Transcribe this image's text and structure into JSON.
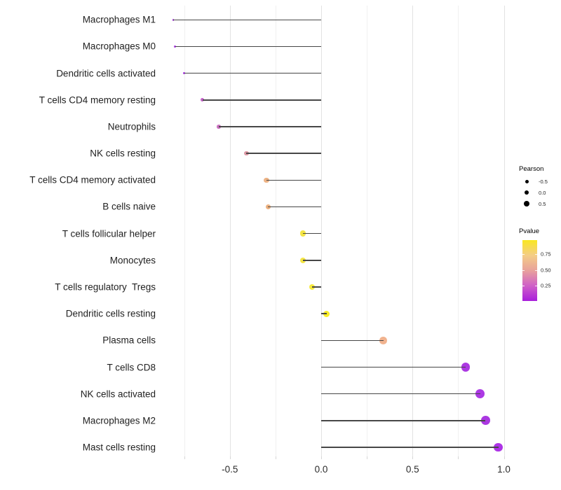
{
  "chart_data": {
    "type": "lollipop",
    "title": "",
    "xlabel": "",
    "ylabel": "",
    "xlim": [
      -0.88,
      1.02
    ],
    "x_ticks": [
      {
        "value": -0.5,
        "label": "-0.5"
      },
      {
        "value": 0.0,
        "label": "0.0"
      },
      {
        "value": 0.5,
        "label": "0.5"
      },
      {
        "value": 1.0,
        "label": "1.0"
      }
    ],
    "minor_gridlines": [
      -0.75,
      -0.25,
      0.25,
      0.75
    ],
    "grid": "vertical-only",
    "baseline": 0.0,
    "points": [
      {
        "label": "Macrophages M1",
        "pearson": -0.81,
        "color": "#a42ae0"
      },
      {
        "label": "Macrophages M0",
        "pearson": -0.8,
        "color": "#a42ae0"
      },
      {
        "label": "Dendritic cells activated",
        "pearson": -0.75,
        "color": "#a32bdd"
      },
      {
        "label": "T cells CD4 memory resting",
        "pearson": -0.65,
        "color": "#c157c7"
      },
      {
        "label": "Neutrophils",
        "pearson": -0.56,
        "color": "#c867bd"
      },
      {
        "label": "NK cells resting",
        "pearson": -0.41,
        "color": "#d98f9c"
      },
      {
        "label": "T cells CD4 memory activated",
        "pearson": -0.3,
        "color": "#ebac7b"
      },
      {
        "label": "B cells naive",
        "pearson": -0.29,
        "color": "#eaaa75"
      },
      {
        "label": "T cells follicular helper",
        "pearson": -0.1,
        "color": "#f3e335"
      },
      {
        "label": "Monocytes",
        "pearson": -0.1,
        "color": "#f3e335"
      },
      {
        "label": "T cells regulatory  Tregs",
        "pearson": -0.05,
        "color": "#f5e72c"
      },
      {
        "label": "Dendritic cells resting",
        "pearson": 0.03,
        "color": "#f9eb14"
      },
      {
        "label": "Plasma cells",
        "pearson": 0.34,
        "color": "#f0ac86"
      },
      {
        "label": "T cells CD8",
        "pearson": 0.79,
        "color": "#a528e0"
      },
      {
        "label": "NK cells activated",
        "pearson": 0.87,
        "color": "#a528e2"
      },
      {
        "label": "Macrophages M2",
        "pearson": 0.9,
        "color": "#a326de"
      },
      {
        "label": "Mast cells resting",
        "pearson": 0.97,
        "color": "#a622e4"
      }
    ]
  },
  "legend": {
    "pearson": {
      "title": "Pearson",
      "dot_color": "#000000",
      "items": [
        {
          "label": "-0.5",
          "size": 5
        },
        {
          "label": "0.0",
          "size": 6.5
        },
        {
          "label": "0.5",
          "size": 8
        }
      ]
    },
    "pvalue": {
      "title": "Pvalue",
      "range": [
        0,
        0.98
      ],
      "ticks": [
        {
          "value": 0.75,
          "label": "0.75"
        },
        {
          "value": 0.5,
          "label": "0.50"
        },
        {
          "value": 0.25,
          "label": "0.25"
        }
      ],
      "gradient_top_to_bottom": [
        "#f9e721",
        "#f4cd86",
        "#e8a19c",
        "#cf60c7",
        "#a81edb"
      ]
    }
  }
}
